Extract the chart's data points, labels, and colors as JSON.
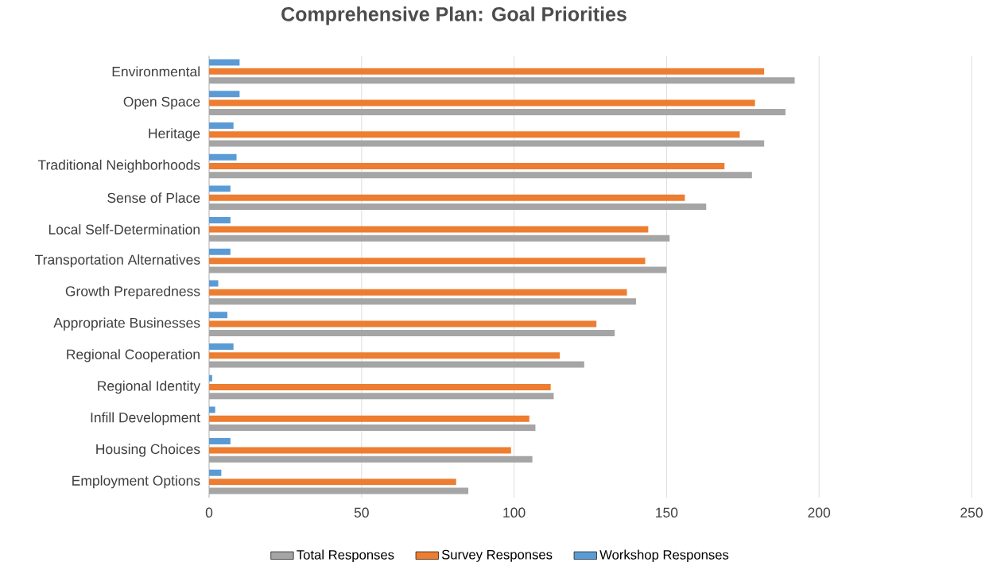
{
  "chart_data": {
    "type": "bar",
    "orientation": "horizontal",
    "title": "Comprehensive Plan: Goal Priorities",
    "categories": [
      "Environmental",
      "Open Space",
      "Heritage",
      "Traditional Neighborhoods",
      "Sense of Place",
      "Local Self-Determination",
      "Transportation Alternatives",
      "Growth Preparedness",
      "Appropriate Businesses",
      "Regional Cooperation",
      "Regional Identity",
      "Infill Development",
      "Housing Choices",
      "Employment Options"
    ],
    "series": [
      {
        "name": "Total Responses",
        "color": "#a5a5a5",
        "values": [
          192,
          189,
          182,
          178,
          163,
          151,
          150,
          140,
          133,
          123,
          113,
          107,
          106,
          85
        ]
      },
      {
        "name": "Survey Responses",
        "color": "#ed7d31",
        "values": [
          182,
          179,
          174,
          169,
          156,
          144,
          143,
          137,
          127,
          115,
          112,
          105,
          99,
          81
        ]
      },
      {
        "name": "Workshop Responses",
        "color": "#5b9bd5",
        "values": [
          10,
          10,
          8,
          9,
          7,
          7,
          7,
          3,
          6,
          8,
          1,
          2,
          7,
          4
        ]
      }
    ],
    "xlim": [
      0,
      250
    ],
    "xticks": [
      0,
      50,
      100,
      150,
      200,
      250
    ],
    "grid": "x",
    "legend": "bottom"
  }
}
